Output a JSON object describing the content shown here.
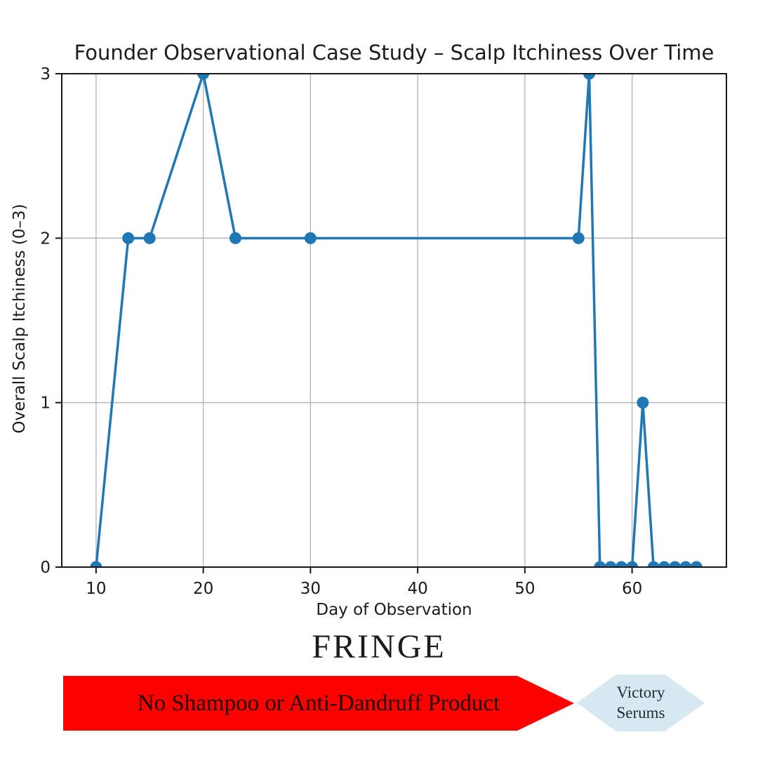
{
  "chart_data": {
    "type": "line",
    "title": "Founder Observational Case Study – Scalp Itchiness Over Time",
    "xlabel": "Day of Observation",
    "ylabel": "Overall Scalp Itchiness (0–3)",
    "x": [
      10,
      13,
      15,
      20,
      23,
      30,
      55,
      56,
      57,
      58,
      59,
      60,
      61,
      62,
      63,
      64,
      65,
      66
    ],
    "y": [
      0,
      2,
      2,
      3,
      2,
      2,
      2,
      3,
      0,
      0,
      0,
      0,
      1,
      0,
      0,
      0,
      0,
      0
    ],
    "xlim": [
      6.8,
      68.8
    ],
    "ylim": [
      0,
      3
    ],
    "xticks": [
      10,
      20,
      30,
      40,
      50,
      60
    ],
    "yticks": [
      0,
      1,
      2,
      3
    ],
    "grid": true,
    "legend": "none",
    "line_color": "#1f77b4",
    "grid_color": "#b3b3b3",
    "axis_color": "#1a1a1a"
  },
  "brand": {
    "name": "FRINGE",
    "banner": {
      "label": "No Shampoo or Anti-Dandruff Product",
      "color": "#fb0100",
      "text_color": "#1f0d05"
    },
    "badge": {
      "lines": [
        "Victory",
        "Serums"
      ],
      "color": "#d8e8f0",
      "text_color": "#1d2c34"
    }
  }
}
